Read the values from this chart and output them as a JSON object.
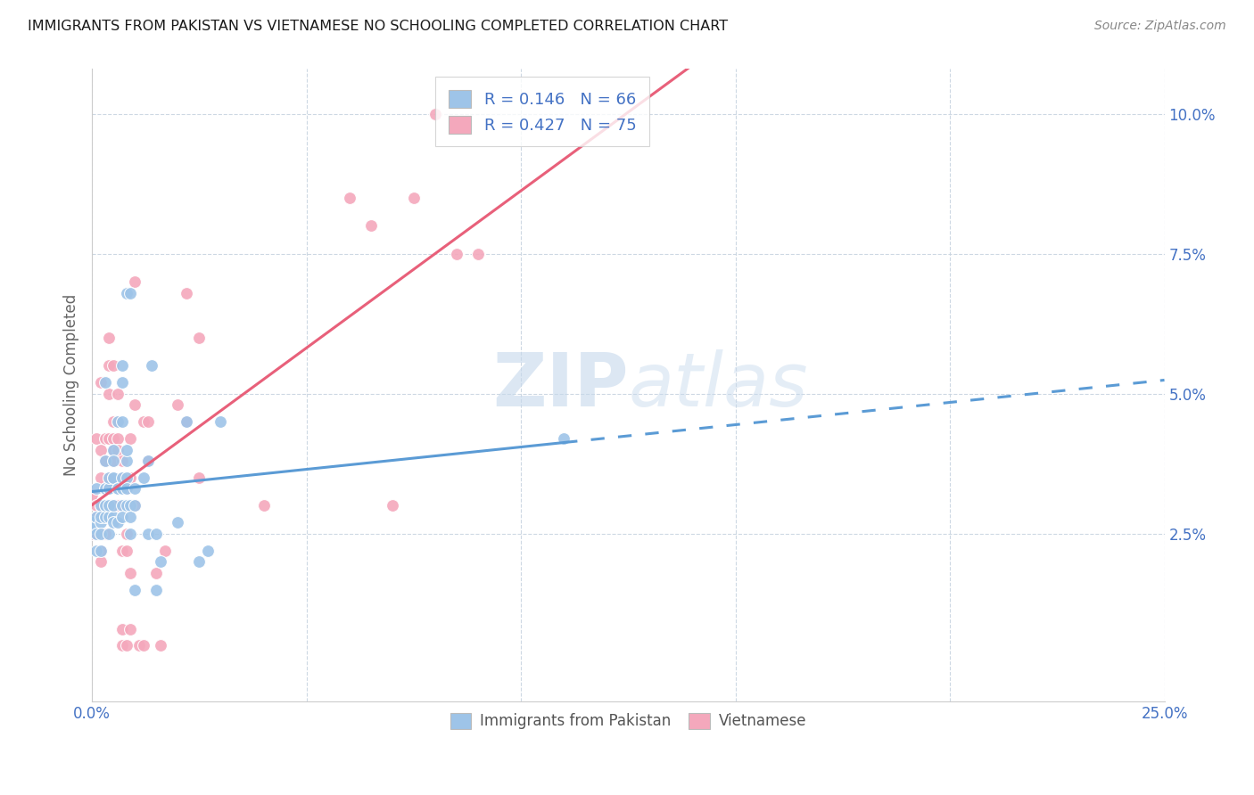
{
  "title": "IMMIGRANTS FROM PAKISTAN VS VIETNAMESE NO SCHOOLING COMPLETED CORRELATION CHART",
  "source": "Source: ZipAtlas.com",
  "xlim": [
    0.0,
    0.25
  ],
  "ylim": [
    -0.005,
    0.108
  ],
  "pakistan_color": "#9ec4e8",
  "vietnamese_color": "#f4a8bc",
  "pakistan_line_color": "#5b9bd5",
  "vietnamese_line_color": "#e8607a",
  "tick_color": "#4472c4",
  "watermark": "ZIPatlas",
  "pakistan_R": 0.146,
  "pakistan_N": 66,
  "vietnamese_R": 0.427,
  "vietnamese_N": 75,
  "background_color": "#ffffff",
  "grid_color": "#c8d4e0",
  "pakistan_scatter": [
    [
      0.0,
      0.027
    ],
    [
      0.0,
      0.026
    ],
    [
      0.001,
      0.028
    ],
    [
      0.001,
      0.033
    ],
    [
      0.001,
      0.025
    ],
    [
      0.001,
      0.022
    ],
    [
      0.002,
      0.027
    ],
    [
      0.002,
      0.03
    ],
    [
      0.002,
      0.025
    ],
    [
      0.002,
      0.022
    ],
    [
      0.002,
      0.028
    ],
    [
      0.003,
      0.033
    ],
    [
      0.003,
      0.028
    ],
    [
      0.003,
      0.038
    ],
    [
      0.003,
      0.052
    ],
    [
      0.003,
      0.03
    ],
    [
      0.004,
      0.025
    ],
    [
      0.004,
      0.028
    ],
    [
      0.004,
      0.033
    ],
    [
      0.004,
      0.03
    ],
    [
      0.004,
      0.033
    ],
    [
      0.004,
      0.035
    ],
    [
      0.005,
      0.028
    ],
    [
      0.005,
      0.027
    ],
    [
      0.005,
      0.035
    ],
    [
      0.005,
      0.04
    ],
    [
      0.005,
      0.035
    ],
    [
      0.005,
      0.038
    ],
    [
      0.005,
      0.03
    ],
    [
      0.006,
      0.033
    ],
    [
      0.006,
      0.045
    ],
    [
      0.006,
      0.033
    ],
    [
      0.006,
      0.027
    ],
    [
      0.007,
      0.052
    ],
    [
      0.007,
      0.03
    ],
    [
      0.007,
      0.035
    ],
    [
      0.007,
      0.028
    ],
    [
      0.007,
      0.045
    ],
    [
      0.007,
      0.055
    ],
    [
      0.007,
      0.033
    ],
    [
      0.008,
      0.038
    ],
    [
      0.008,
      0.03
    ],
    [
      0.008,
      0.04
    ],
    [
      0.008,
      0.035
    ],
    [
      0.008,
      0.068
    ],
    [
      0.008,
      0.033
    ],
    [
      0.009,
      0.025
    ],
    [
      0.009,
      0.03
    ],
    [
      0.009,
      0.028
    ],
    [
      0.009,
      0.068
    ],
    [
      0.01,
      0.015
    ],
    [
      0.01,
      0.03
    ],
    [
      0.01,
      0.033
    ],
    [
      0.012,
      0.035
    ],
    [
      0.013,
      0.038
    ],
    [
      0.013,
      0.025
    ],
    [
      0.014,
      0.055
    ],
    [
      0.015,
      0.025
    ],
    [
      0.015,
      0.015
    ],
    [
      0.016,
      0.02
    ],
    [
      0.02,
      0.027
    ],
    [
      0.022,
      0.045
    ],
    [
      0.025,
      0.02
    ],
    [
      0.027,
      0.022
    ],
    [
      0.03,
      0.045
    ],
    [
      0.11,
      0.042
    ]
  ],
  "vietnamese_scatter": [
    [
      0.0,
      0.032
    ],
    [
      0.0,
      0.025
    ],
    [
      0.001,
      0.025
    ],
    [
      0.001,
      0.028
    ],
    [
      0.001,
      0.03
    ],
    [
      0.001,
      0.042
    ],
    [
      0.002,
      0.035
    ],
    [
      0.002,
      0.022
    ],
    [
      0.002,
      0.03
    ],
    [
      0.002,
      0.04
    ],
    [
      0.002,
      0.052
    ],
    [
      0.002,
      0.02
    ],
    [
      0.003,
      0.03
    ],
    [
      0.003,
      0.028
    ],
    [
      0.003,
      0.038
    ],
    [
      0.003,
      0.042
    ],
    [
      0.003,
      0.025
    ],
    [
      0.003,
      0.033
    ],
    [
      0.003,
      0.028
    ],
    [
      0.003,
      0.038
    ],
    [
      0.004,
      0.05
    ],
    [
      0.004,
      0.055
    ],
    [
      0.004,
      0.03
    ],
    [
      0.004,
      0.035
    ],
    [
      0.004,
      0.06
    ],
    [
      0.004,
      0.042
    ],
    [
      0.005,
      0.03
    ],
    [
      0.005,
      0.042
    ],
    [
      0.005,
      0.04
    ],
    [
      0.005,
      0.055
    ],
    [
      0.005,
      0.038
    ],
    [
      0.005,
      0.045
    ],
    [
      0.006,
      0.03
    ],
    [
      0.006,
      0.033
    ],
    [
      0.006,
      0.045
    ],
    [
      0.006,
      0.05
    ],
    [
      0.006,
      0.042
    ],
    [
      0.006,
      0.04
    ],
    [
      0.007,
      0.035
    ],
    [
      0.007,
      0.038
    ],
    [
      0.007,
      0.008
    ],
    [
      0.007,
      0.022
    ],
    [
      0.007,
      0.005
    ],
    [
      0.008,
      0.033
    ],
    [
      0.008,
      0.022
    ],
    [
      0.008,
      0.005
    ],
    [
      0.008,
      0.025
    ],
    [
      0.009,
      0.018
    ],
    [
      0.009,
      0.008
    ],
    [
      0.009,
      0.042
    ],
    [
      0.009,
      0.035
    ],
    [
      0.01,
      0.03
    ],
    [
      0.01,
      0.048
    ],
    [
      0.01,
      0.07
    ],
    [
      0.011,
      0.005
    ],
    [
      0.012,
      0.045
    ],
    [
      0.012,
      0.005
    ],
    [
      0.013,
      0.038
    ],
    [
      0.013,
      0.045
    ],
    [
      0.015,
      0.018
    ],
    [
      0.016,
      0.005
    ],
    [
      0.017,
      0.022
    ],
    [
      0.02,
      0.048
    ],
    [
      0.022,
      0.045
    ],
    [
      0.022,
      0.068
    ],
    [
      0.025,
      0.035
    ],
    [
      0.025,
      0.06
    ],
    [
      0.04,
      0.03
    ],
    [
      0.06,
      0.085
    ],
    [
      0.065,
      0.08
    ],
    [
      0.07,
      0.03
    ],
    [
      0.075,
      0.085
    ],
    [
      0.08,
      0.1
    ],
    [
      0.085,
      0.075
    ],
    [
      0.09,
      0.075
    ]
  ],
  "pak_line_solid_end": 0.11,
  "vie_line_end": 0.25,
  "xtick_positions": [
    0.0,
    0.25
  ],
  "ytick_positions": [
    0.025,
    0.05,
    0.075,
    0.1
  ]
}
